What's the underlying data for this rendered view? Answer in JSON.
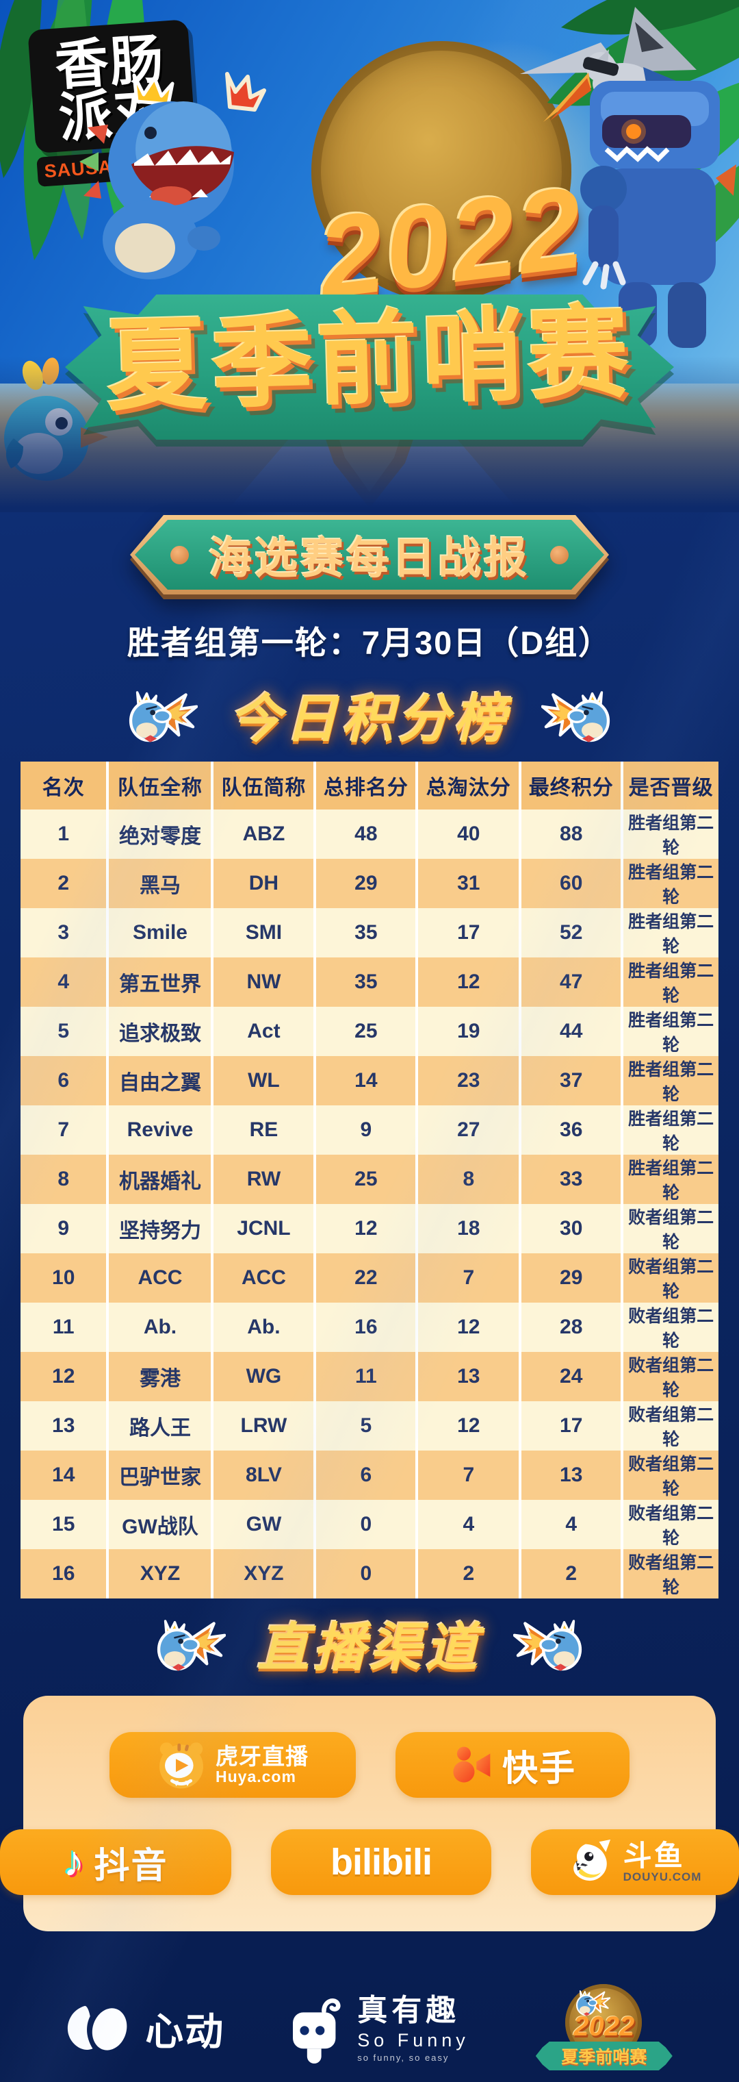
{
  "colors": {
    "page_navy": "#0d2a6b",
    "accent_orange": "#f9a315",
    "panel_peach": "#fcdcae",
    "table_header_bg": "#f5c176",
    "table_row_light": "#fdf5d8",
    "table_row_dark": "#f9cc8b",
    "table_text_navy": "#263768",
    "title_gold": "#ffd95c",
    "banner_green": "#27a080"
  },
  "logo": {
    "cn_top": "香肠",
    "cn_bottom": "派对",
    "en": "SAUSAGE MAN"
  },
  "hero": {
    "year": "2022",
    "title": "夏季前哨赛"
  },
  "pill": {
    "label": "海选赛每日战报"
  },
  "subtitle": "胜者组第一轮：7月30日（D组）",
  "scoreboard": {
    "title": "今日积分榜",
    "columns": [
      "名次",
      "队伍全称",
      "队伍简称",
      "总排名分",
      "总淘汰分",
      "最终积分",
      "是否晋级"
    ],
    "rows": [
      {
        "rank": "1",
        "team": "绝对零度",
        "abbr": "ABZ",
        "placement": "48",
        "kills": "40",
        "total": "88",
        "advance": "胜者组第二轮"
      },
      {
        "rank": "2",
        "team": "黑马",
        "abbr": "DH",
        "placement": "29",
        "kills": "31",
        "total": "60",
        "advance": "胜者组第二轮"
      },
      {
        "rank": "3",
        "team": "Smile",
        "abbr": "SMI",
        "placement": "35",
        "kills": "17",
        "total": "52",
        "advance": "胜者组第二轮"
      },
      {
        "rank": "4",
        "team": "第五世界",
        "abbr": "NW",
        "placement": "35",
        "kills": "12",
        "total": "47",
        "advance": "胜者组第二轮"
      },
      {
        "rank": "5",
        "team": "追求极致",
        "abbr": "Act",
        "placement": "25",
        "kills": "19",
        "total": "44",
        "advance": "胜者组第二轮"
      },
      {
        "rank": "6",
        "team": "自由之翼",
        "abbr": "WL",
        "placement": "14",
        "kills": "23",
        "total": "37",
        "advance": "胜者组第二轮"
      },
      {
        "rank": "7",
        "team": "Revive",
        "abbr": "RE",
        "placement": "9",
        "kills": "27",
        "total": "36",
        "advance": "胜者组第二轮"
      },
      {
        "rank": "8",
        "team": "机器婚礼",
        "abbr": "RW",
        "placement": "25",
        "kills": "8",
        "total": "33",
        "advance": "胜者组第二轮"
      },
      {
        "rank": "9",
        "team": "坚持努力",
        "abbr": "JCNL",
        "placement": "12",
        "kills": "18",
        "total": "30",
        "advance": "败者组第二轮"
      },
      {
        "rank": "10",
        "team": "ACC",
        "abbr": "ACC",
        "placement": "22",
        "kills": "7",
        "total": "29",
        "advance": "败者组第二轮"
      },
      {
        "rank": "11",
        "team": "Ab.",
        "abbr": "Ab.",
        "placement": "16",
        "kills": "12",
        "total": "28",
        "advance": "败者组第二轮"
      },
      {
        "rank": "12",
        "team": "雾港",
        "abbr": "WG",
        "placement": "11",
        "kills": "13",
        "total": "24",
        "advance": "败者组第二轮"
      },
      {
        "rank": "13",
        "team": "路人王",
        "abbr": "LRW",
        "placement": "5",
        "kills": "12",
        "total": "17",
        "advance": "败者组第二轮"
      },
      {
        "rank": "14",
        "team": "巴驴世家",
        "abbr": "8LV",
        "placement": "6",
        "kills": "7",
        "total": "13",
        "advance": "败者组第二轮"
      },
      {
        "rank": "15",
        "team": "GW战队",
        "abbr": "GW",
        "placement": "0",
        "kills": "4",
        "total": "4",
        "advance": "败者组第二轮"
      },
      {
        "rank": "16",
        "team": "XYZ",
        "abbr": "XYZ",
        "placement": "0",
        "kills": "2",
        "total": "2",
        "advance": "败者组第二轮"
      }
    ]
  },
  "streams": {
    "title": "直播渠道",
    "huya": {
      "name": "虎牙直播",
      "site": "Huya.com"
    },
    "kuaishou": {
      "name": "快手"
    },
    "douyin": {
      "name": "抖音"
    },
    "bilibili": {
      "name": "bilibili"
    },
    "douyu": {
      "name": "斗鱼",
      "site": "DOUYU.COM"
    }
  },
  "footer": {
    "xd": "心动",
    "soFunny": {
      "name": "真有趣",
      "en": "So Funny",
      "tagline": "so funny, so easy"
    },
    "badge": {
      "year": "2022",
      "title": "夏季前哨赛"
    }
  }
}
